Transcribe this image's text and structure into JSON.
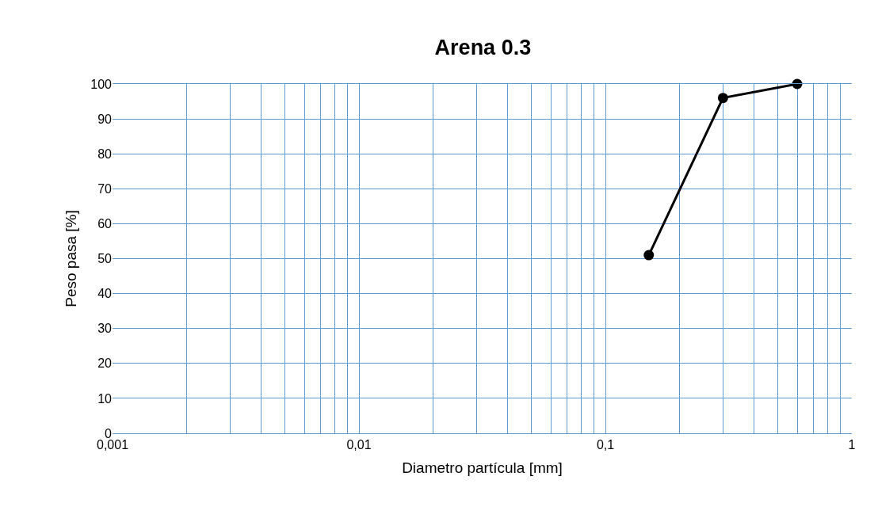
{
  "chart_data": {
    "type": "line",
    "title": "Arena 0.3",
    "xlabel": "Diametro partícula [mm]",
    "ylabel": "Peso pasa [%]",
    "x": [
      0.15,
      0.3,
      0.6
    ],
    "series": [
      {
        "color": "#000000",
        "values": [
          51,
          96,
          100
        ]
      }
    ],
    "log": "x",
    "xlim": [
      0.001,
      1
    ],
    "xticks": [
      {
        "value": 0.001,
        "label": "0,001"
      },
      {
        "value": 0.002,
        "label": null
      },
      {
        "value": 0.003,
        "label": null
      },
      {
        "value": 0.004,
        "label": null
      },
      {
        "value": 0.005,
        "label": null
      },
      {
        "value": 0.006,
        "label": null
      },
      {
        "value": 0.007,
        "label": null
      },
      {
        "value": 0.008,
        "label": null
      },
      {
        "value": 0.009,
        "label": null
      },
      {
        "value": 0.01,
        "label": "0,01"
      },
      {
        "value": 0.02,
        "label": null
      },
      {
        "value": 0.03,
        "label": null
      },
      {
        "value": 0.04,
        "label": null
      },
      {
        "value": 0.05,
        "label": null
      },
      {
        "value": 0.06,
        "label": null
      },
      {
        "value": 0.07,
        "label": null
      },
      {
        "value": 0.08,
        "label": null
      },
      {
        "value": 0.09,
        "label": null
      },
      {
        "value": 0.1,
        "label": "0,1"
      },
      {
        "value": 0.2,
        "label": null
      },
      {
        "value": 0.3,
        "label": null
      },
      {
        "value": 0.4,
        "label": null
      },
      {
        "value": 0.5,
        "label": null
      },
      {
        "value": 0.6,
        "label": null
      },
      {
        "value": 0.7,
        "label": null
      },
      {
        "value": 0.8,
        "label": null
      },
      {
        "value": 0.9,
        "label": null
      },
      1
    ],
    "ylim": [
      0,
      100
    ],
    "yticks": [
      0,
      10,
      20,
      30,
      40,
      50,
      60,
      70,
      80,
      90,
      100
    ],
    "grid": true,
    "marker": "circle",
    "line_style": "solid"
  }
}
